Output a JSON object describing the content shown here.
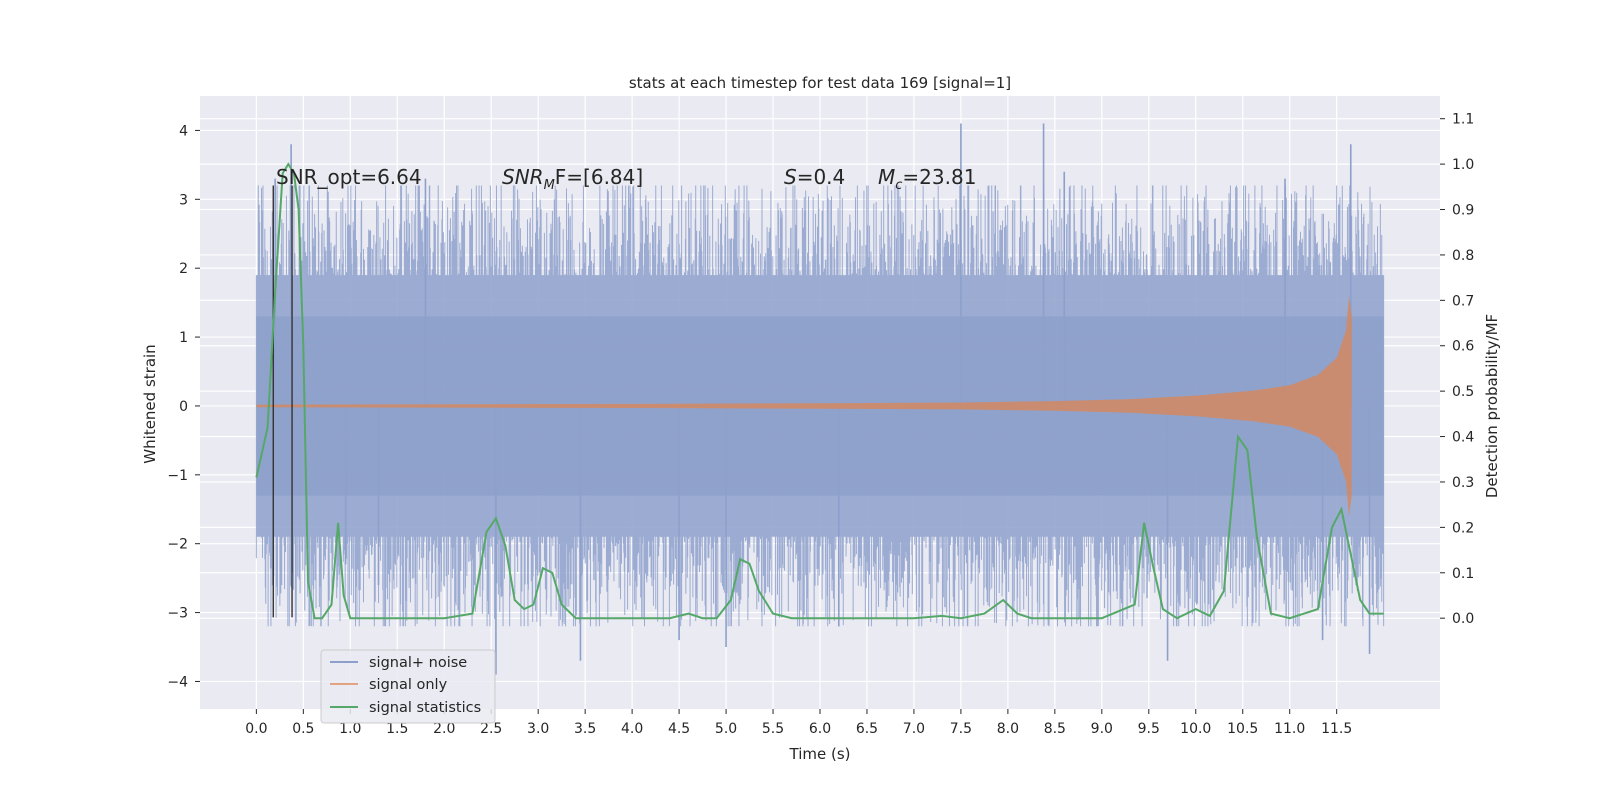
{
  "chart_data": {
    "type": "line",
    "title": "stats at each timestep for test data 169 [signal=1]",
    "xlabel": "Time (s)",
    "ylabel": "Whitened strain",
    "ylabel_right": "Detection probability/MF",
    "xlim": [
      -0.6,
      12.6
    ],
    "ylim": [
      -4.4,
      4.5
    ],
    "ylim_right": [
      -0.2,
      1.15
    ],
    "x_ticks": [
      0.0,
      0.5,
      1.0,
      1.5,
      2.0,
      2.5,
      3.0,
      3.5,
      4.0,
      4.5,
      5.0,
      5.5,
      6.0,
      6.5,
      7.0,
      7.5,
      8.0,
      8.5,
      9.0,
      9.5,
      10.0,
      10.5,
      11.0,
      11.5
    ],
    "x_tick_labels": [
      "0.0",
      "0.5",
      "1.0",
      "1.5",
      "2.0",
      "2.5",
      "3.0",
      "3.5",
      "4.0",
      "4.5",
      "5.0",
      "5.5",
      "6.0",
      "6.5",
      "7.0",
      "7.5",
      "8.0",
      "8.5",
      "9.0",
      "9.5",
      "10.0",
      "10.5",
      "11.0",
      "11.5"
    ],
    "y_ticks": [
      4,
      3,
      2,
      1,
      0,
      -1,
      -2,
      -3,
      -4
    ],
    "y_tick_labels": [
      "4",
      "3",
      "2",
      "1",
      "0",
      "−1",
      "−2",
      "−3",
      "−4"
    ],
    "y_right_ticks": [
      1.1,
      1.0,
      0.9,
      0.8,
      0.7,
      0.6,
      0.5,
      0.4,
      0.3,
      0.2,
      0.1,
      0.0
    ],
    "y_right_tick_labels": [
      "1.1",
      "1.0",
      "0.9",
      "0.8",
      "0.7",
      "0.6",
      "0.5",
      "0.4",
      "0.3",
      "0.2",
      "0.1",
      "0.0"
    ],
    "grid": true,
    "legend_position": "lower-left",
    "series": [
      {
        "name": "signal+ noise",
        "axis": "left",
        "color": "#8da0cb",
        "x_range": [
          0.0,
          12.0
        ],
        "envelope_core": [
          -1.9,
          1.9
        ],
        "spike_peaks": [
          {
            "x": 0.2,
            "y": 3.3
          },
          {
            "x": 0.37,
            "y": 3.8
          },
          {
            "x": 0.95,
            "y": -2.3
          },
          {
            "x": 1.3,
            "y": -2.6
          },
          {
            "x": 1.8,
            "y": 3.3
          },
          {
            "x": 2.55,
            "y": -3.9
          },
          {
            "x": 3.45,
            "y": -3.7
          },
          {
            "x": 4.5,
            "y": -3.4
          },
          {
            "x": 5.0,
            "y": -3.5
          },
          {
            "x": 6.2,
            "y": -3.2
          },
          {
            "x": 7.5,
            "y": 4.1
          },
          {
            "x": 8.38,
            "y": 4.1
          },
          {
            "x": 8.6,
            "y": 3.4
          },
          {
            "x": 9.7,
            "y": -3.7
          },
          {
            "x": 10.95,
            "y": 3.3
          },
          {
            "x": 11.35,
            "y": -3.4
          },
          {
            "x": 11.65,
            "y": 3.8
          },
          {
            "x": 11.85,
            "y": -3.6
          }
        ]
      },
      {
        "name": "signal only",
        "axis": "left",
        "color": "#dd8452",
        "x": [
          0.0,
          4.0,
          6.0,
          7.5,
          8.5,
          9.3,
          10.0,
          10.6,
          11.0,
          11.3,
          11.5,
          11.6,
          11.63,
          11.66
        ],
        "amplitude": [
          0.02,
          0.03,
          0.04,
          0.05,
          0.07,
          0.1,
          0.15,
          0.22,
          0.3,
          0.45,
          0.7,
          1.1,
          1.6,
          1.3
        ]
      },
      {
        "name": "signal statistics",
        "axis": "right",
        "color": "#55a868",
        "x": [
          0.0,
          0.12,
          0.2,
          0.28,
          0.34,
          0.4,
          0.45,
          0.5,
          0.55,
          0.62,
          0.7,
          0.8,
          0.87,
          0.93,
          1.0,
          1.2,
          2.0,
          2.3,
          2.45,
          2.55,
          2.65,
          2.75,
          2.85,
          2.95,
          3.05,
          3.15,
          3.25,
          3.4,
          3.8,
          4.4,
          4.6,
          4.75,
          4.9,
          5.05,
          5.15,
          5.25,
          5.35,
          5.5,
          5.7,
          6.0,
          7.0,
          7.3,
          7.5,
          7.75,
          7.95,
          8.1,
          8.25,
          8.5,
          9.0,
          9.35,
          9.45,
          9.55,
          9.65,
          9.8,
          10.0,
          10.15,
          10.3,
          10.45,
          10.55,
          10.65,
          10.8,
          11.0,
          11.3,
          11.45,
          11.55,
          11.65,
          11.75,
          11.85,
          12.0
        ],
        "y": [
          0.31,
          0.42,
          0.72,
          0.98,
          1.0,
          0.98,
          0.9,
          0.6,
          0.08,
          0.0,
          0.0,
          0.03,
          0.21,
          0.05,
          0.0,
          0.0,
          0.0,
          0.01,
          0.19,
          0.22,
          0.16,
          0.04,
          0.02,
          0.03,
          0.11,
          0.1,
          0.03,
          0.0,
          0.0,
          0.0,
          0.01,
          0.0,
          0.0,
          0.04,
          0.13,
          0.12,
          0.06,
          0.01,
          0.0,
          0.0,
          0.0,
          0.005,
          0.0,
          0.01,
          0.04,
          0.01,
          0.0,
          0.0,
          0.0,
          0.03,
          0.21,
          0.11,
          0.02,
          0.0,
          0.02,
          0.005,
          0.06,
          0.4,
          0.37,
          0.18,
          0.01,
          0.0,
          0.02,
          0.2,
          0.24,
          0.14,
          0.04,
          0.01,
          0.01
        ]
      }
    ],
    "markers": {
      "axis": "left",
      "color": "#333333",
      "x": [
        0.18,
        0.38
      ],
      "y_range": [
        -3.07,
        3.2
      ]
    }
  },
  "annotations": {
    "snr_opt": "SNR_opt=6.64",
    "snr_mf_prefix": "SNR",
    "snr_mf_sub": "M",
    "snr_mf_suffix": "F=[6.84]",
    "s_var": "S",
    "s_value": "=0.4",
    "mc_var": "M",
    "mc_sub": "c",
    "mc_value": "=23.81"
  },
  "legend": {
    "items": [
      {
        "label": "signal+ noise",
        "color": "#8da0cb"
      },
      {
        "label": "signal only",
        "color": "#dd8452"
      },
      {
        "label": "signal statistics",
        "color": "#55a868"
      }
    ]
  },
  "style": {
    "plot_background": "#eaeaf2",
    "grid_color": "#ffffff"
  }
}
